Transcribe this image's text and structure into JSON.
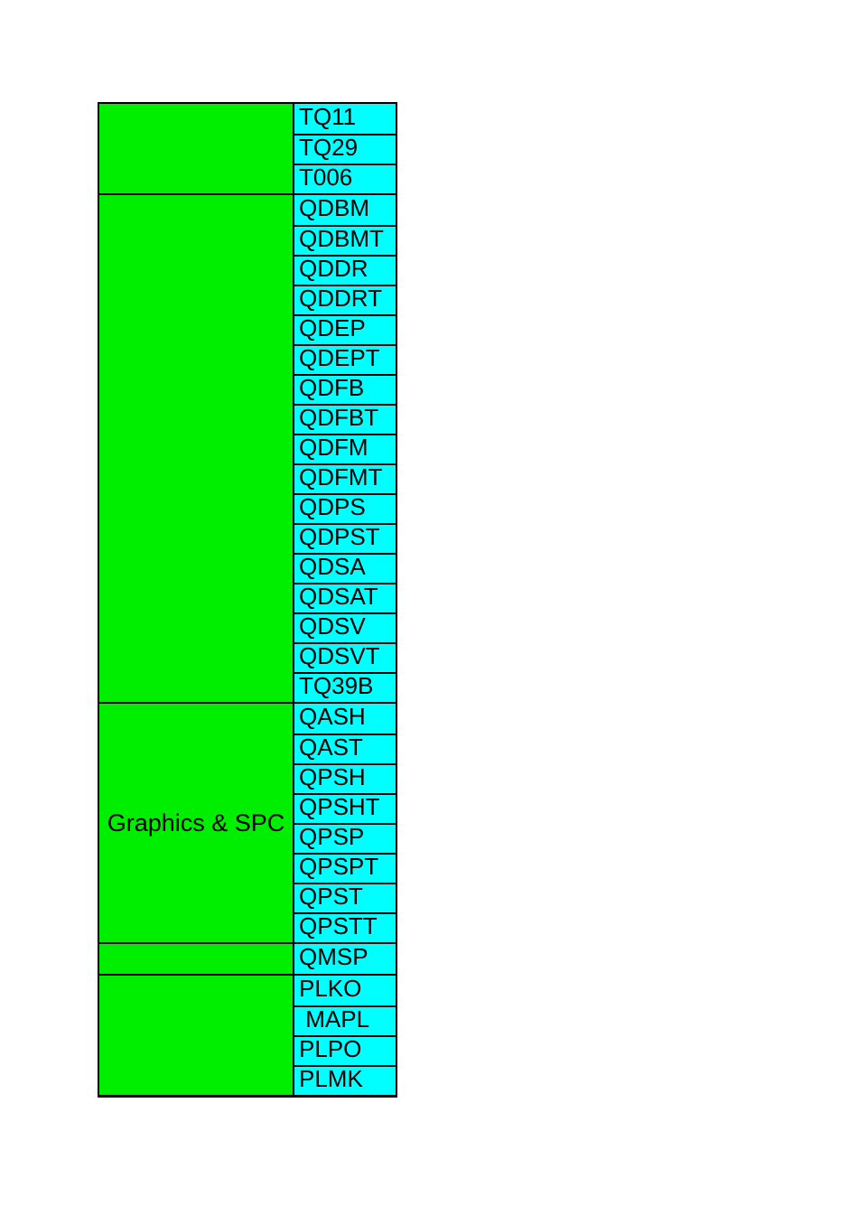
{
  "table": {
    "colors": {
      "group_fill": "#00ee00",
      "code_fill": "#00ffff",
      "border": "#000000",
      "text": "#000000"
    },
    "groups": [
      {
        "label": "",
        "codes": [
          "TQ11",
          "TQ29",
          "T006"
        ]
      },
      {
        "label": "",
        "codes": [
          "QDBM",
          "QDBMT",
          "QDDR",
          "QDDRT",
          "QDEP",
          "QDEPT",
          "QDFB",
          "QDFBT",
          "QDFM",
          "QDFMT",
          "QDPS",
          "QDPST",
          "QDSA",
          "QDSAT",
          "QDSV",
          "QDSVT",
          "TQ39B"
        ]
      },
      {
        "label": "Graphics & SPC",
        "codes": [
          "QASH",
          "QAST",
          "QPSH",
          "QPSHT",
          "QPSP",
          "QPSPT",
          "QPST",
          "QPSTT"
        ]
      },
      {
        "label": "",
        "codes": [
          "QMSP"
        ]
      },
      {
        "label": "",
        "codes": [
          "PLKO",
          " MAPL",
          "PLPO",
          "PLMK"
        ]
      }
    ]
  }
}
